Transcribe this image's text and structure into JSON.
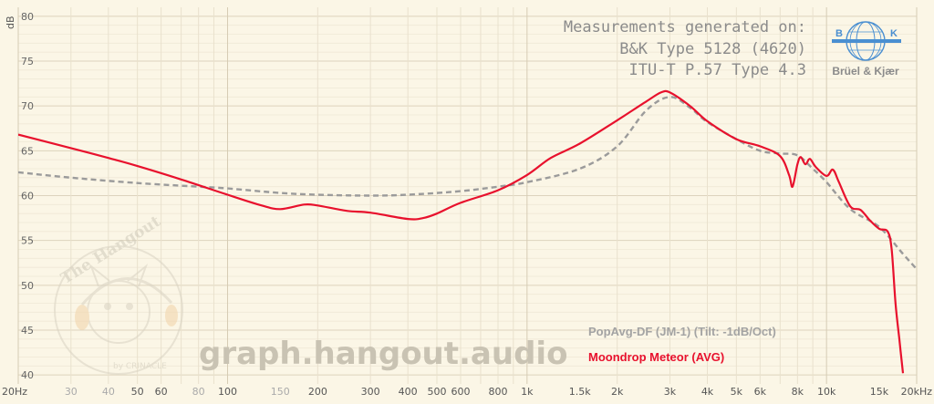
{
  "chart_data": {
    "type": "line",
    "xscale": "log",
    "xlim": [
      20,
      20000
    ],
    "ylim": [
      39,
      81
    ],
    "ylabel_unit": "dB",
    "grid": true,
    "y_ticks": [
      40,
      45,
      50,
      55,
      60,
      65,
      70,
      75,
      80
    ],
    "x_ticks": [
      {
        "v": 20,
        "label": "20Hz",
        "major": true
      },
      {
        "v": 30,
        "label": "30",
        "major": false
      },
      {
        "v": 40,
        "label": "40",
        "major": false
      },
      {
        "v": 50,
        "label": "50",
        "major": true
      },
      {
        "v": 60,
        "label": "60",
        "major": true
      },
      {
        "v": 80,
        "label": "80",
        "major": false
      },
      {
        "v": 100,
        "label": "100",
        "major": true
      },
      {
        "v": 150,
        "label": "150",
        "major": false
      },
      {
        "v": 200,
        "label": "200",
        "major": true
      },
      {
        "v": 300,
        "label": "300",
        "major": true
      },
      {
        "v": 400,
        "label": "400",
        "major": true
      },
      {
        "v": 500,
        "label": "500",
        "major": true
      },
      {
        "v": 600,
        "label": "600",
        "major": true
      },
      {
        "v": 800,
        "label": "800",
        "major": true
      },
      {
        "v": 1000,
        "label": "1k",
        "major": true
      },
      {
        "v": 1500,
        "label": "1.5k",
        "major": true
      },
      {
        "v": 2000,
        "label": "2k",
        "major": true
      },
      {
        "v": 3000,
        "label": "3k",
        "major": true
      },
      {
        "v": 4000,
        "label": "4k",
        "major": true
      },
      {
        "v": 5000,
        "label": "5k",
        "major": true
      },
      {
        "v": 6000,
        "label": "6k",
        "major": true
      },
      {
        "v": 8000,
        "label": "8k",
        "major": true
      },
      {
        "v": 10000,
        "label": "10k",
        "major": true
      },
      {
        "v": 15000,
        "label": "15k",
        "major": true
      },
      {
        "v": 20000,
        "label": "20kHz",
        "major": true
      }
    ],
    "series": [
      {
        "name": "PopAvg-DF (JM-1) (Tilt: -1dB/Oct)",
        "color": "#9b9b9b",
        "dash": true,
        "points": [
          [
            20,
            62.6
          ],
          [
            30,
            62.0
          ],
          [
            50,
            61.4
          ],
          [
            80,
            61.0
          ],
          [
            100,
            60.8
          ],
          [
            150,
            60.3
          ],
          [
            200,
            60.1
          ],
          [
            300,
            60.0
          ],
          [
            400,
            60.1
          ],
          [
            600,
            60.5
          ],
          [
            800,
            61.0
          ],
          [
            1000,
            61.5
          ],
          [
            1500,
            63.0
          ],
          [
            2000,
            65.5
          ],
          [
            2500,
            69.5
          ],
          [
            3000,
            71.0
          ],
          [
            3500,
            69.8
          ],
          [
            4000,
            68.2
          ],
          [
            5000,
            66.3
          ],
          [
            6000,
            65.0
          ],
          [
            7000,
            64.7
          ],
          [
            8000,
            64.5
          ],
          [
            9000,
            63.0
          ],
          [
            10000,
            61.5
          ],
          [
            12000,
            58.5
          ],
          [
            15000,
            56.5
          ],
          [
            18000,
            53.5
          ],
          [
            20000,
            51.8
          ]
        ]
      },
      {
        "name": "Moondrop Meteor (AVG)",
        "color": "#e8112d",
        "dash": false,
        "points": [
          [
            20,
            66.8
          ],
          [
            30,
            65.3
          ],
          [
            40,
            64.2
          ],
          [
            50,
            63.3
          ],
          [
            70,
            61.8
          ],
          [
            100,
            60.1
          ],
          [
            130,
            58.9
          ],
          [
            150,
            58.5
          ],
          [
            180,
            59.0
          ],
          [
            200,
            58.9
          ],
          [
            250,
            58.3
          ],
          [
            300,
            58.1
          ],
          [
            400,
            57.4
          ],
          [
            450,
            57.5
          ],
          [
            500,
            58.0
          ],
          [
            600,
            59.2
          ],
          [
            800,
            60.6
          ],
          [
            1000,
            62.3
          ],
          [
            1200,
            64.2
          ],
          [
            1500,
            65.8
          ],
          [
            2000,
            68.4
          ],
          [
            2500,
            70.5
          ],
          [
            2800,
            71.5
          ],
          [
            3000,
            71.5
          ],
          [
            3500,
            70.0
          ],
          [
            4000,
            68.3
          ],
          [
            5000,
            66.3
          ],
          [
            6000,
            65.5
          ],
          [
            7000,
            64.4
          ],
          [
            7500,
            62.3
          ],
          [
            7700,
            61.0
          ],
          [
            8000,
            63.5
          ],
          [
            8200,
            64.3
          ],
          [
            8500,
            63.5
          ],
          [
            8800,
            64.1
          ],
          [
            9200,
            63.2
          ],
          [
            10000,
            62.2
          ],
          [
            10500,
            62.9
          ],
          [
            11000,
            61.5
          ],
          [
            12000,
            58.8
          ],
          [
            13000,
            58.4
          ],
          [
            14000,
            57.2
          ],
          [
            15000,
            56.3
          ],
          [
            16000,
            56.0
          ],
          [
            16500,
            54.0
          ],
          [
            17000,
            48.0
          ],
          [
            17500,
            44.0
          ],
          [
            18000,
            40.2
          ]
        ]
      }
    ]
  },
  "unit_label": "dB",
  "measurement_lines": [
    "Measurements generated on:",
    "B&K Type 5128 (4620)",
    "ITU-T P.57 Type 4.3"
  ],
  "bk_logo": {
    "left": "B",
    "right": "K",
    "name": "Brüel & Kjær",
    "color": "#4a8fd1"
  },
  "watermark": "graph.hangout.audio",
  "hangout_logo": {
    "title": "The Hangout",
    "byline": "by CRINACLE"
  }
}
